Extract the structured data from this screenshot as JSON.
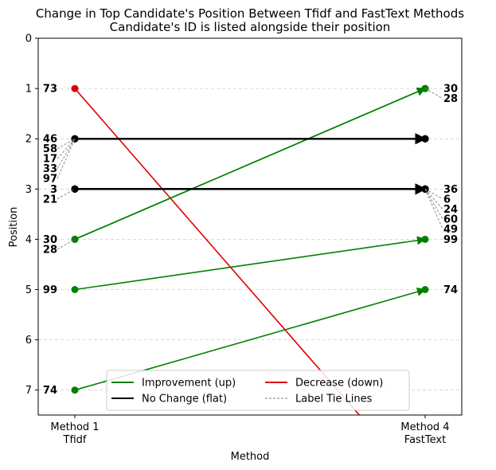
{
  "chart_data": {
    "type": "line",
    "title": "Change in Top Candidate's Position Between Tfidf and FastText Methods",
    "subtitle": "Candidate's ID is listed alongside their position",
    "xlabel": "Method",
    "ylabel": "Position",
    "x_ticks": [
      {
        "line1": "Method 1",
        "line2": "Tfidf"
      },
      {
        "line1": "Method 4",
        "line2": "FastText"
      }
    ],
    "y_ticks": [
      "0",
      "1",
      "2",
      "3",
      "4",
      "5",
      "6",
      "7"
    ],
    "ylim": [
      7.5,
      0
    ],
    "inverted_y": true,
    "grid": "y dashed",
    "colors": {
      "up": "#008000",
      "flat": "#000000",
      "down": "#e00000",
      "tie": "#808080"
    },
    "lines": [
      {
        "id": "73",
        "from": 1,
        "to": 9,
        "change": "down"
      },
      {
        "id": "30",
        "from": 4,
        "to": 1,
        "change": "up"
      },
      {
        "id": "28",
        "from": 4,
        "to": 1,
        "change": "up"
      },
      {
        "id": "99",
        "from": 5,
        "to": 4,
        "change": "up"
      },
      {
        "id": "74",
        "from": 7,
        "to": 5,
        "change": "up"
      },
      {
        "id": "46",
        "from": 2,
        "to": 2,
        "change": "flat"
      },
      {
        "id": "58",
        "from": 2,
        "to": 2,
        "change": "flat"
      },
      {
        "id": "17",
        "from": 2,
        "to": 2,
        "change": "flat"
      },
      {
        "id": "33",
        "from": 2,
        "to": 2,
        "change": "flat"
      },
      {
        "id": "97",
        "from": 2,
        "to": 2,
        "change": "flat"
      },
      {
        "id": "3",
        "from": 3,
        "to": 3,
        "change": "flat"
      },
      {
        "id": "21",
        "from": 3,
        "to": 3,
        "change": "flat"
      },
      {
        "id": "36",
        "from": 3,
        "to": 3,
        "change": "flat"
      },
      {
        "id": "6",
        "from": 3,
        "to": 3,
        "change": "flat"
      },
      {
        "id": "24",
        "from": 3,
        "to": 3,
        "change": "flat"
      },
      {
        "id": "60",
        "from": 3,
        "to": 3,
        "change": "flat"
      },
      {
        "id": "49",
        "from": 3,
        "to": 3,
        "change": "flat"
      }
    ],
    "left_labels": [
      {
        "id": "73",
        "pos": 1,
        "color": "#000000"
      },
      {
        "id": "46",
        "pos": 2,
        "color": "#000000"
      },
      {
        "id": "58",
        "pos": 2,
        "color": "#000000"
      },
      {
        "id": "17",
        "pos": 2,
        "color": "#000000"
      },
      {
        "id": "33",
        "pos": 2,
        "color": "#000000"
      },
      {
        "id": "97",
        "pos": 2,
        "color": "#000000"
      },
      {
        "id": "3",
        "pos": 3,
        "color": "#000000"
      },
      {
        "id": "21",
        "pos": 3,
        "color": "#000000"
      },
      {
        "id": "30",
        "pos": 4,
        "color": "#000000"
      },
      {
        "id": "28",
        "pos": 4,
        "color": "#000000"
      },
      {
        "id": "99",
        "pos": 5,
        "color": "#000000"
      },
      {
        "id": "74",
        "pos": 7,
        "color": "#000000"
      }
    ],
    "right_labels": [
      {
        "id": "30",
        "pos": 1,
        "color": "#008000"
      },
      {
        "id": "28",
        "pos": 1,
        "color": "#008000"
      },
      {
        "id": "36",
        "pos": 3,
        "color": "#000000"
      },
      {
        "id": "6",
        "pos": 3,
        "color": "#000000"
      },
      {
        "id": "24",
        "pos": 3,
        "color": "#000000"
      },
      {
        "id": "60",
        "pos": 3,
        "color": "#000000"
      },
      {
        "id": "49",
        "pos": 3,
        "color": "#000000"
      },
      {
        "id": "99",
        "pos": 4,
        "color": "#008000"
      },
      {
        "id": "74",
        "pos": 5,
        "color": "#008000"
      }
    ],
    "legend": {
      "placement": "lower center",
      "entries": [
        {
          "label": "Improvement (up)",
          "color": "#008000",
          "style": "solid"
        },
        {
          "label": "No Change (flat)",
          "color": "#000000",
          "style": "solid"
        },
        {
          "label": "Decrease (down)",
          "color": "#e00000",
          "style": "solid"
        },
        {
          "label": "Label Tie Lines",
          "color": "#808080",
          "style": "dashed"
        }
      ]
    }
  }
}
